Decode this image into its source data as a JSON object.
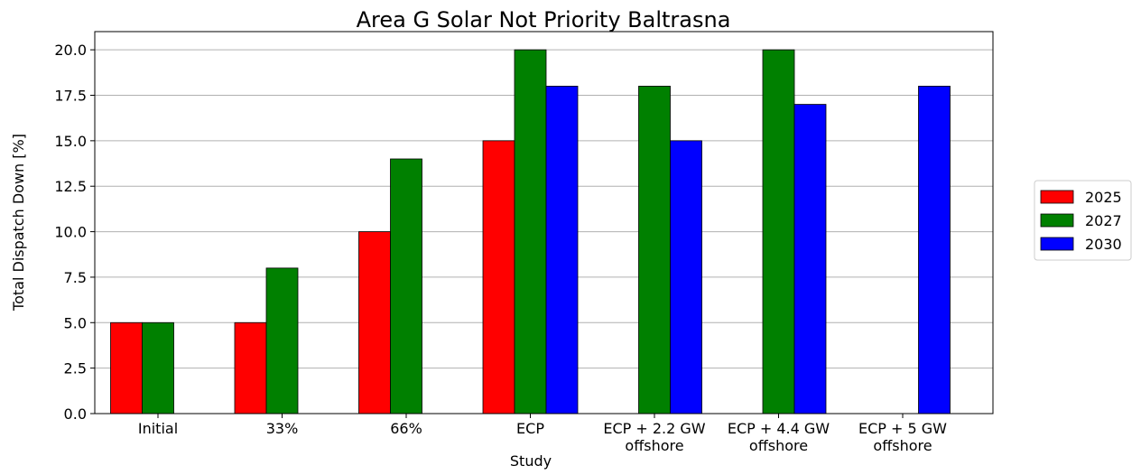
{
  "chart_data": {
    "type": "bar",
    "title": "Area G Solar Not Priority Baltrasna",
    "xlabel": "Study",
    "ylabel": "Total Dispatch Down [%]",
    "categories": [
      "Initial",
      "33%",
      "66%",
      "ECP",
      "ECP + 2.2 GW\noffshore",
      "ECP + 4.4 GW\noffshore",
      "ECP + 5 GW\noffshore"
    ],
    "series": [
      {
        "name": "2025",
        "color": "#ff0000",
        "values": [
          5,
          5,
          10,
          15,
          null,
          null,
          null
        ]
      },
      {
        "name": "2027",
        "color": "#008000",
        "values": [
          5,
          8,
          14,
          20,
          18,
          20,
          null
        ]
      },
      {
        "name": "2030",
        "color": "#0000ff",
        "values": [
          null,
          null,
          null,
          18,
          15,
          17,
          18
        ]
      }
    ],
    "ylim": [
      0,
      21
    ],
    "yticks": [
      {
        "value": 0,
        "label": "0.0"
      },
      2.5,
      {
        "value": 5,
        "label": "5.0"
      },
      7.5,
      {
        "value": 10,
        "label": "10.0"
      },
      12.5,
      {
        "value": 15,
        "label": "15.0"
      },
      17.5,
      {
        "value": 20,
        "label": "20.0"
      }
    ],
    "grid": true,
    "legend": "right"
  }
}
